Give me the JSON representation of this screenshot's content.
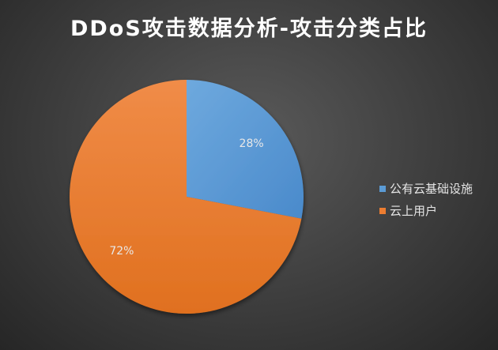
{
  "chart_data": {
    "type": "pie",
    "title": "DDoS攻击数据分析-攻击分类占比",
    "start_angle_deg": 0,
    "direction": "clockwise",
    "slices": [
      {
        "name": "公有云基础设施",
        "value": 28,
        "label": "28%",
        "color": "#5b9bd5"
      },
      {
        "name": "云上用户",
        "value": 72,
        "label": "72%",
        "color": "#ed7d31"
      }
    ],
    "legend": "right",
    "background": "#404040"
  }
}
